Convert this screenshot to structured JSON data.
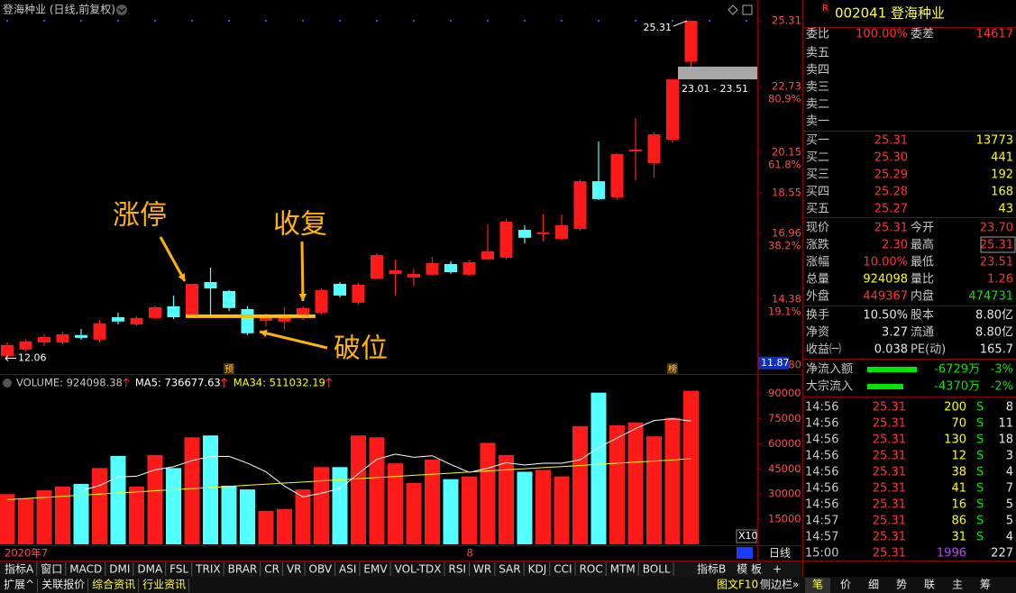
{
  "header": {
    "title": "登海种业 (日线,前复权)"
  },
  "chart_data": [
    {
      "type": "candlestick",
      "categories": [
        "2020年7",
        null,
        null,
        null,
        null,
        null,
        null,
        null,
        null,
        null,
        null,
        null,
        null,
        null,
        null,
        null,
        null,
        null,
        null,
        null,
        null,
        null,
        null,
        null,
        null,
        "8",
        null,
        null,
        null,
        null,
        null,
        null,
        null,
        null,
        null,
        null,
        null,
        null
      ],
      "open": [
        12.15,
        12.4,
        12.68,
        12.68,
        12.97,
        12.79,
        13.67,
        13.39,
        13.64,
        14.1,
        13.67,
        15.05,
        14.7,
        13.99,
        13.53,
        13.5,
        13.67,
        13.85,
        14.98,
        14.24,
        15.19,
        15.37,
        15.23,
        15.34,
        15.76,
        15.34,
        15.94,
        16.01,
        17.1,
        16.93,
        16.75,
        17.14,
        19.01,
        18.38,
        20.18,
        19.72,
        20.64,
        23.7
      ],
      "high": [
        12.68,
        12.79,
        13.0,
        13.11,
        13.21,
        13.57,
        13.85,
        13.71,
        14.13,
        14.52,
        14.98,
        15.62,
        14.73,
        14.1,
        13.81,
        14.06,
        14.1,
        14.8,
        15.05,
        15.02,
        16.18,
        15.94,
        15.58,
        16.04,
        15.87,
        15.9,
        17.32,
        17.53,
        17.28,
        17.71,
        17.71,
        19.08,
        20.57,
        20.11,
        21.49,
        20.92,
        23.01,
        25.31
      ],
      "low": [
        12.06,
        12.33,
        12.54,
        12.61,
        12.79,
        12.68,
        13.39,
        13.32,
        13.57,
        13.6,
        13.67,
        13.67,
        13.92,
        12.97,
        13.32,
        13.18,
        13.57,
        13.78,
        14.45,
        14.17,
        15.16,
        14.52,
        14.88,
        15.3,
        15.37,
        15.3,
        15.9,
        15.94,
        16.57,
        16.64,
        16.68,
        17.07,
        18.27,
        18.31,
        19.05,
        19.15,
        20.53,
        23.51
      ],
      "close": [
        12.58,
        12.72,
        12.89,
        13.0,
        12.86,
        13.43,
        13.5,
        13.64,
        14.06,
        13.67,
        14.98,
        14.8,
        14.03,
        13.04,
        13.74,
        13.78,
        14.03,
        14.73,
        14.52,
        14.95,
        16.11,
        15.51,
        15.37,
        15.8,
        15.44,
        15.83,
        16.26,
        17.42,
        16.79,
        17.0,
        17.28,
        19.01,
        18.31,
        20.08,
        20.25,
        20.85,
        23.01,
        25.31
      ],
      "up_color": "#ff1a1a",
      "down_color": "#54ffff",
      "ylim": [
        11.44,
        25.95
      ],
      "yticks": [
        25.31,
        22.73,
        20.15,
        18.55,
        16.96,
        14.38,
        {
          "value": 11.8,
          "label": "11.80"
        }
      ],
      "fib": [
        {
          "price": 22.73,
          "label": "80.9%"
        },
        {
          "price": 20.15,
          "label": "61.8%"
        },
        {
          "price": 16.96,
          "label": "38.2%"
        },
        {
          "price": 14.38,
          "label": "19.1%"
        }
      ],
      "high_tag": 25.31,
      "low_tag": 12.06,
      "cursor_tag": 11.87,
      "range_box": {
        "low": 23.01,
        "high": 23.51,
        "label": "23.01 - 23.51"
      },
      "support_level": 13.71,
      "annotations": [
        "涨停",
        "收复",
        "破位"
      ],
      "event_markers": [
        null,
        null,
        null,
        null,
        null,
        null,
        null,
        null,
        null,
        null,
        null,
        null,
        "预",
        null,
        null,
        null,
        null,
        null,
        null,
        null,
        null,
        null,
        null,
        null,
        null,
        null,
        null,
        null,
        null,
        null,
        null,
        null,
        null,
        null,
        null,
        null,
        "榜",
        null
      ]
    },
    {
      "type": "bar",
      "series": [
        {
          "name": "VOLUME: 924098.38",
          "values": [
            30000,
            27222,
            32222,
            34444,
            36111,
            45556,
            52778,
            34444,
            53333,
            45556,
            63889,
            65000,
            35000,
            32778,
            20000,
            21111,
            32778,
            46111,
            46111,
            65000,
            63889,
            48333,
            36667,
            50556,
            38889,
            40556,
            60556,
            53333,
            43333,
            44444,
            40556,
            70556,
            90556,
            71111,
            72778,
            64444,
            75556,
            91667
          ]
        },
        {
          "name": "MA5: 736677.63",
          "color": "#ffffff",
          "values": [
            null,
            null,
            null,
            null,
            32000,
            35111,
            40222,
            40667,
            44444,
            46333,
            50000,
            52444,
            52556,
            48444,
            43333,
            34778,
            28333,
            30556,
            33222,
            42222,
            50778,
            53889,
            52000,
            52889,
            47667,
            43000,
            45444,
            48778,
            47333,
            48444,
            48444,
            50444,
            57889,
            63444,
            69111,
            73889,
            74889,
            73668
          ]
        },
        {
          "name": "MA34: 511032.19",
          "color": "#ffff00",
          "values": [
            26700,
            27400,
            28000,
            28700,
            29300,
            30000,
            30700,
            31300,
            32000,
            32600,
            33300,
            33900,
            34600,
            35300,
            35900,
            36600,
            37200,
            37900,
            38500,
            39200,
            39900,
            40500,
            41200,
            41800,
            42500,
            43200,
            43800,
            44500,
            45100,
            45800,
            46400,
            47100,
            47800,
            48400,
            49100,
            49700,
            50400,
            51103
          ]
        }
      ],
      "ylim": [
        0,
        99000
      ],
      "yticks": [
        15000,
        30000,
        45000,
        60000,
        75000,
        90000
      ],
      "multiplier": "X10"
    }
  ],
  "quote": {
    "badge": "R",
    "title": "002041 登海种业",
    "order_ratio": [
      "委比",
      "100.00%",
      "委差",
      "14617"
    ],
    "asks": [
      "卖五",
      "卖四",
      "卖三",
      "卖二",
      "卖一"
    ],
    "bids": [
      [
        "买一",
        "25.31",
        "13773"
      ],
      [
        "买二",
        "25.30",
        "441"
      ],
      [
        "买三",
        "25.29",
        "192"
      ],
      [
        "买四",
        "25.28",
        "168"
      ],
      [
        "买五",
        "25.27",
        "43"
      ]
    ],
    "stats": [
      [
        "现价",
        "25.31",
        "今开",
        "23.70"
      ],
      [
        "涨跌",
        "2.30",
        "最高",
        "25.31"
      ],
      [
        "涨幅",
        "10.00%",
        "最低",
        "23.51"
      ],
      [
        "总量",
        "924098",
        "量比",
        "1.26"
      ],
      [
        "外盘",
        "449367",
        "内盘",
        "474731"
      ]
    ],
    "fundamentals": [
      [
        "换手",
        "10.50%",
        "股本",
        "8.80亿"
      ],
      [
        "净资",
        "3.27",
        "流通",
        "8.80亿"
      ],
      [
        "收益㈠",
        "0.038",
        "PE(动)",
        "165.7"
      ]
    ],
    "flows": [
      [
        "净流入额",
        "-6729万",
        "-3%"
      ],
      [
        "大宗流入",
        "-4370万",
        "-2%"
      ]
    ],
    "trades": [
      [
        "14:56",
        "25.31",
        "200",
        "S",
        "8"
      ],
      [
        "14:56",
        "25.31",
        "70",
        "S",
        "11"
      ],
      [
        "14:56",
        "25.31",
        "130",
        "S",
        "18"
      ],
      [
        "14:56",
        "25.31",
        "12",
        "S",
        "3"
      ],
      [
        "14:56",
        "25.31",
        "38",
        "S",
        "4"
      ],
      [
        "14:56",
        "25.31",
        "41",
        "S",
        "7"
      ],
      [
        "14:56",
        "25.31",
        "16",
        "S",
        "5"
      ],
      [
        "14:57",
        "25.31",
        "86",
        "S",
        "5"
      ],
      [
        "14:57",
        "25.31",
        "31",
        "S",
        "4"
      ],
      [
        "15:00",
        "25.31",
        "1996",
        "227"
      ]
    ]
  },
  "toolbar": {
    "tabs": [
      "指标A",
      "窗口",
      "MACD",
      "DMI",
      "DMA",
      "FSL",
      "TRIX",
      "BRAR",
      "CR",
      "VR",
      "OBV",
      "ASI",
      "EMV",
      "VOL-TDX",
      "RSI",
      "WR",
      "SAR",
      "KDJ",
      "CCI",
      "ROC",
      "MTM",
      "BOLL"
    ],
    "right": [
      "指标B",
      "模 板",
      "+"
    ],
    "period": "日线"
  },
  "footer": {
    "left": [
      "扩展^",
      "关联报价",
      "综合资讯",
      "行业资讯"
    ],
    "right": [
      "图文F10",
      "侧边栏»"
    ],
    "side_tabs": [
      "笔",
      "价",
      "细",
      "势",
      "联",
      "主",
      "筹"
    ]
  }
}
